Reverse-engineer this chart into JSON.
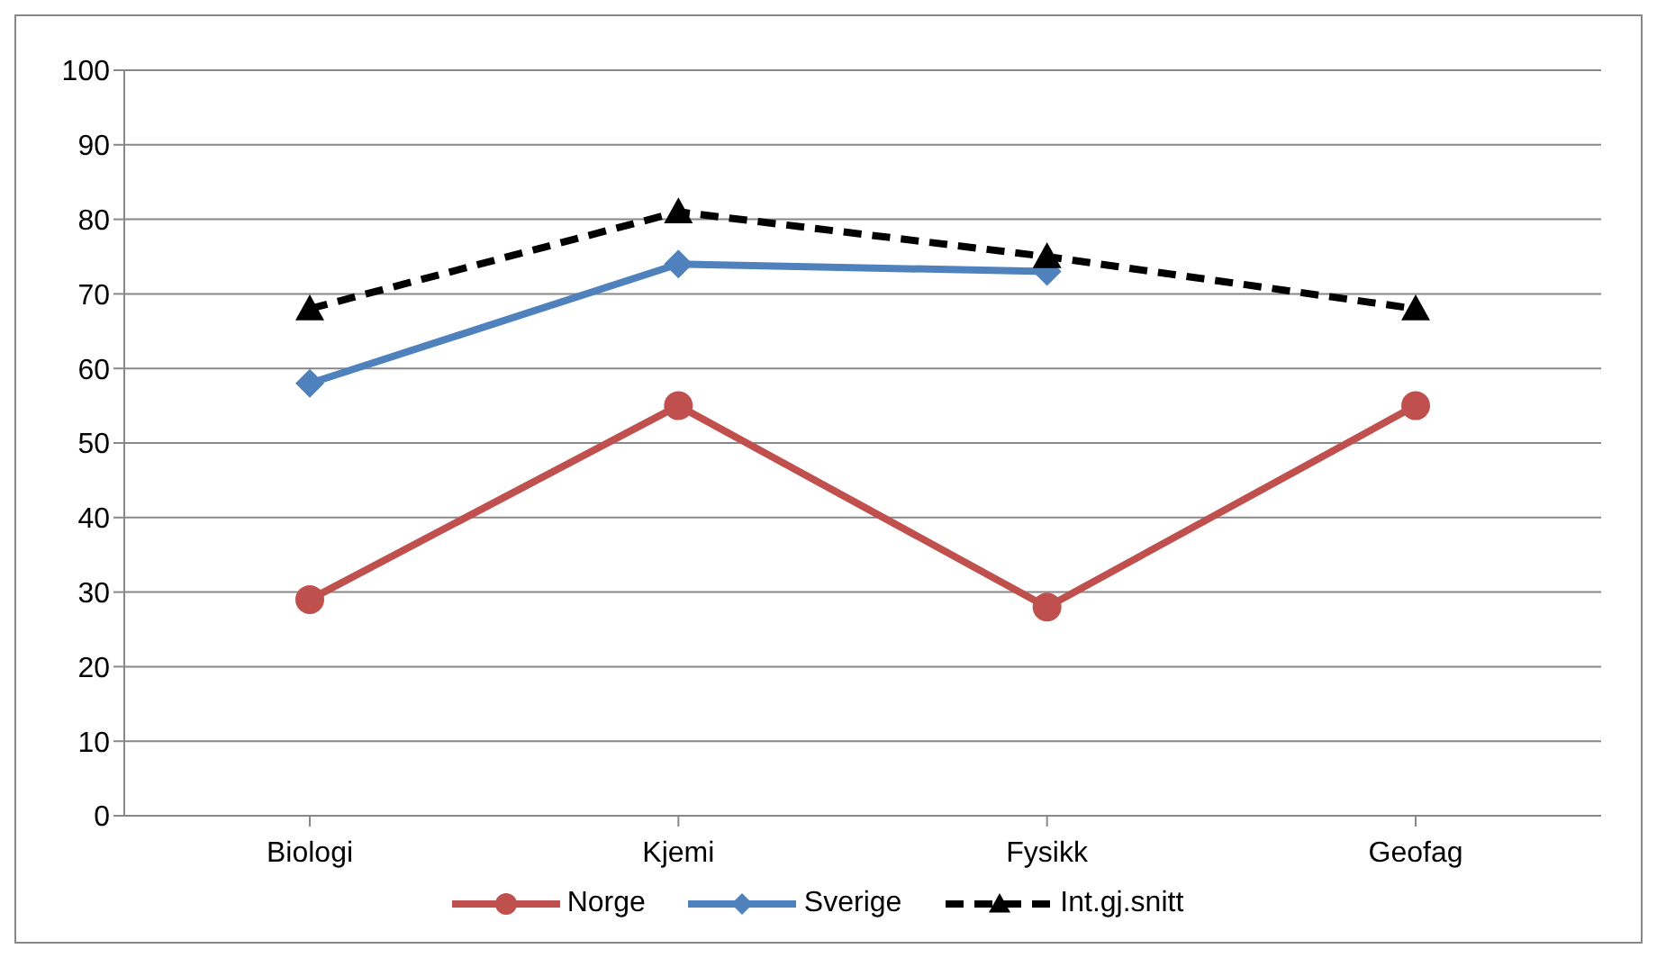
{
  "chart_data": {
    "type": "line",
    "categories": [
      "Biologi",
      "Kjemi",
      "Fysikk",
      "Geofag"
    ],
    "series": [
      {
        "name": "Norge",
        "color": "#c0504d",
        "values": [
          29,
          55,
          28,
          55
        ],
        "marker": "circle",
        "line_style": "solid"
      },
      {
        "name": "Sverige",
        "color": "#4f81bd",
        "values": [
          58,
          74,
          73,
          null
        ],
        "marker": "diamond",
        "line_style": "solid"
      },
      {
        "name": "Int.gj.snitt",
        "color": "#000000",
        "values": [
          68,
          81,
          75,
          68
        ],
        "marker": "triangle",
        "line_style": "dashed"
      }
    ],
    "ylim": [
      0,
      100
    ],
    "yticks": [
      0,
      10,
      20,
      30,
      40,
      50,
      60,
      70,
      80,
      90,
      100
    ],
    "grid": "y",
    "legend": "bottom"
  }
}
